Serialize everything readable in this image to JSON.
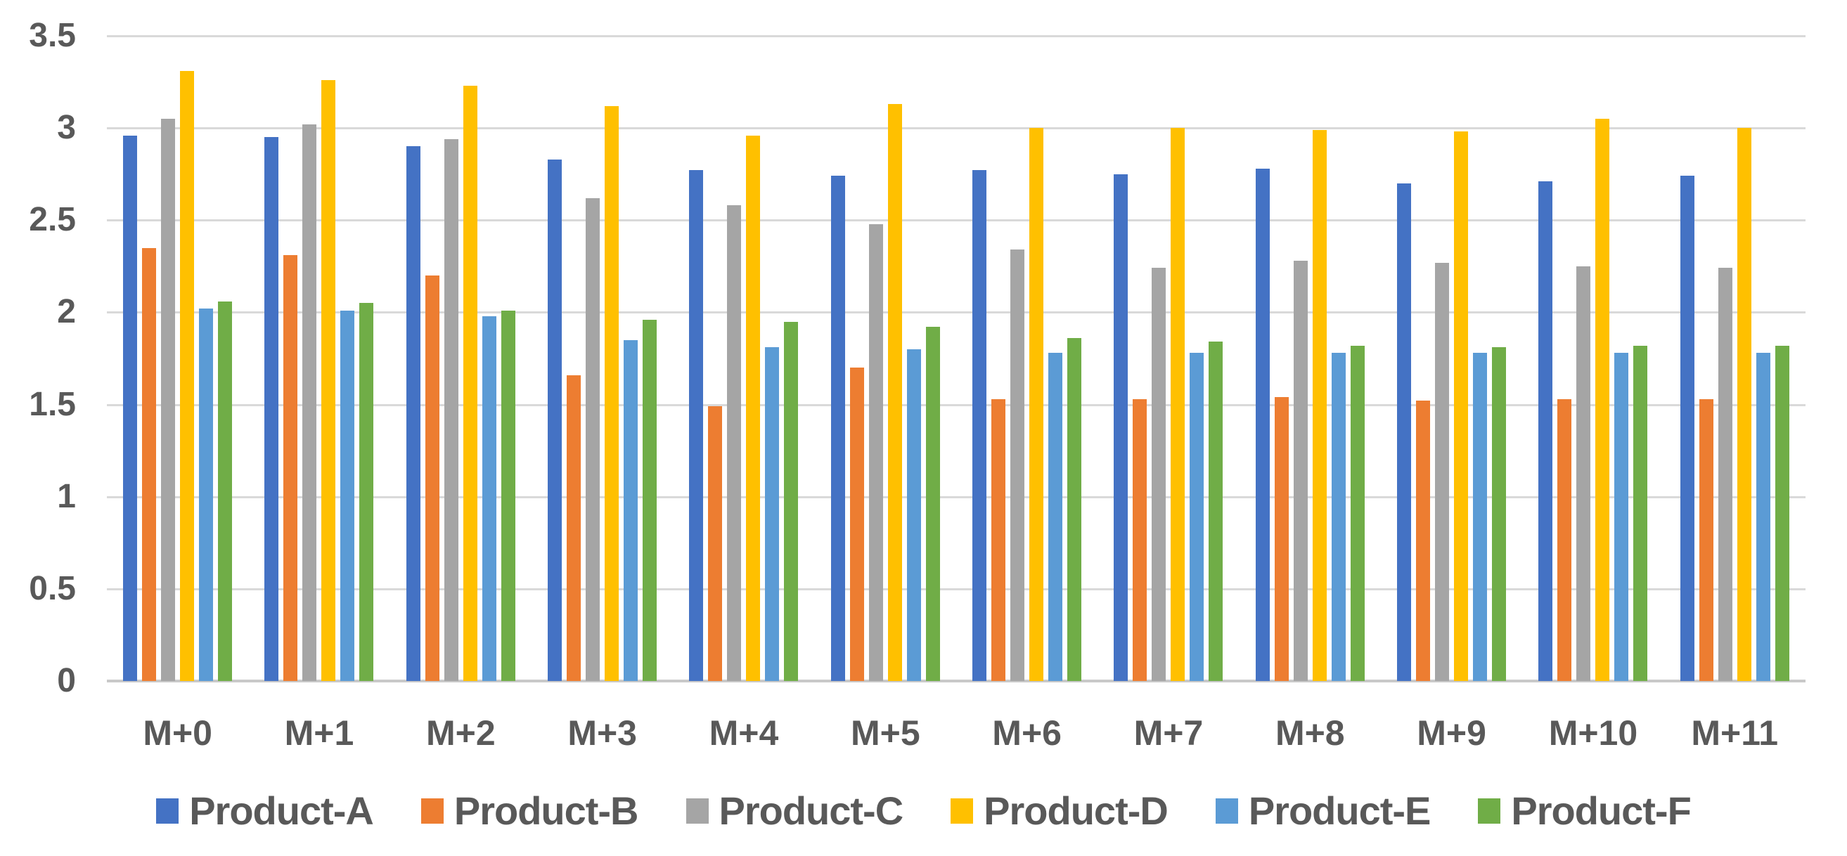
{
  "chart_data": {
    "type": "bar",
    "title": "",
    "categories": [
      "M+0",
      "M+1",
      "M+2",
      "M+3",
      "M+4",
      "M+5",
      "M+6",
      "M+7",
      "M+8",
      "M+9",
      "M+10",
      "M+11"
    ],
    "series": [
      {
        "name": "Product-A",
        "color": "#4472C4",
        "values": [
          2.96,
          2.95,
          2.9,
          2.83,
          2.77,
          2.74,
          2.77,
          2.75,
          2.78,
          2.7,
          2.71,
          2.74
        ]
      },
      {
        "name": "Product-B",
        "color": "#ED7D31",
        "values": [
          2.35,
          2.31,
          2.2,
          1.66,
          1.49,
          1.7,
          1.53,
          1.53,
          1.54,
          1.52,
          1.53,
          1.53
        ]
      },
      {
        "name": "Product-C",
        "color": "#A5A5A5",
        "values": [
          3.05,
          3.02,
          2.94,
          2.62,
          2.58,
          2.48,
          2.34,
          2.24,
          2.28,
          2.27,
          2.25,
          2.24
        ]
      },
      {
        "name": "Product-D",
        "color": "#FFC000",
        "values": [
          3.31,
          3.26,
          3.23,
          3.12,
          2.96,
          3.13,
          3.0,
          3.0,
          2.99,
          2.98,
          3.05,
          3.0
        ]
      },
      {
        "name": "Product-E",
        "color": "#5B9BD5",
        "values": [
          2.02,
          2.01,
          1.98,
          1.85,
          1.81,
          1.8,
          1.78,
          1.78,
          1.78,
          1.78,
          1.78,
          1.78
        ]
      },
      {
        "name": "Product-F",
        "color": "#70AD47",
        "values": [
          2.06,
          2.05,
          2.01,
          1.96,
          1.95,
          1.92,
          1.86,
          1.84,
          1.82,
          1.81,
          1.82,
          1.82
        ]
      }
    ],
    "xlabel": "",
    "ylabel": "",
    "ylim": [
      0,
      3.5
    ],
    "y_tick_step": 0.5,
    "y_tick_labels": [
      "0",
      "0.5",
      "1",
      "1.5",
      "2",
      "2.5",
      "3",
      "3.5"
    ],
    "grid": "horizontal",
    "legend_position": "bottom",
    "colors": {
      "background": "#FFFFFF",
      "gridline": "#D9D9D9",
      "axis_line": "#C9C9C9",
      "label_text": "#595959"
    }
  }
}
